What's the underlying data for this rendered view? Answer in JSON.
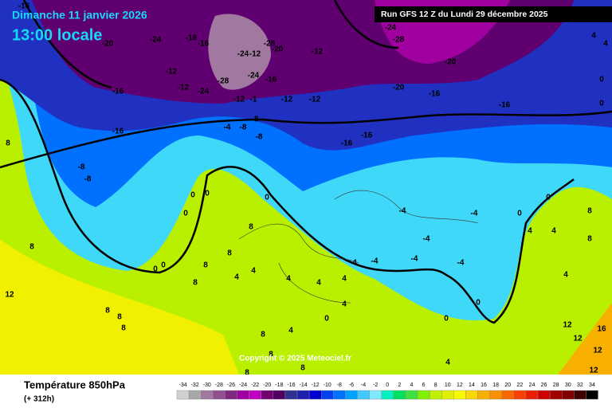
{
  "header": {
    "date": "Dimanche 11 janvier 2026",
    "time": "13:00 locale",
    "run": "Run GFS 12 Z du Lundi 29 décembre 2025"
  },
  "copyright": "Copyright © 2025 Meteociel.fr",
  "footer": {
    "title": "Température 850hPa",
    "lead": "(+ 312h)"
  },
  "map": {
    "labels": [
      -16,
      -20,
      -24,
      -16,
      -16,
      -12,
      -12,
      -24,
      -28,
      -24,
      -12,
      -28,
      -20,
      -24,
      -16,
      -12,
      -1,
      -12,
      -12,
      -12,
      -24,
      -28,
      -20,
      -20,
      -16,
      -16,
      -16,
      -16,
      -4,
      -8,
      -8,
      -8,
      -16,
      -16,
      -8,
      -8,
      8,
      0,
      0,
      0,
      0,
      -4,
      -4,
      -4,
      -4,
      -4,
      -4,
      4,
      8,
      8,
      0,
      0,
      8,
      8,
      8,
      4,
      4,
      4,
      4,
      4,
      12,
      8,
      8,
      8,
      4,
      0,
      4,
      8,
      0,
      0,
      0,
      0,
      4,
      4,
      8,
      4,
      8,
      4,
      4,
      0,
      0,
      12,
      12,
      12,
      16,
      12,
      4,
      8,
      8,
      8
    ]
  },
  "legend": {
    "values": [
      -34,
      -32,
      -30,
      -28,
      -26,
      -24,
      -22,
      -20,
      -18,
      -16,
      -14,
      -12,
      -10,
      -8,
      -6,
      -4,
      -2,
      0,
      2,
      4,
      6,
      8,
      10,
      12,
      14,
      16,
      18,
      20,
      22,
      24,
      26,
      28,
      30,
      32,
      34
    ],
    "colors": [
      "#d0d0d0",
      "#a8a8a8",
      "#a078a0",
      "#905090",
      "#802880",
      "#a000a0",
      "#c000c0",
      "#700070",
      "#500060",
      "#303090",
      "#2020b0",
      "#0000d0",
      "#0040f0",
      "#0070ff",
      "#00a0ff",
      "#40c8ff",
      "#80e8ff",
      "#00f0c0",
      "#00e060",
      "#40e040",
      "#80f000",
      "#c0f000",
      "#e0f000",
      "#f8f800",
      "#f8d800",
      "#f8b000",
      "#f89000",
      "#f86800",
      "#f84000",
      "#e82000",
      "#d00000",
      "#a00000",
      "#800000",
      "#400000",
      "#000000"
    ]
  }
}
